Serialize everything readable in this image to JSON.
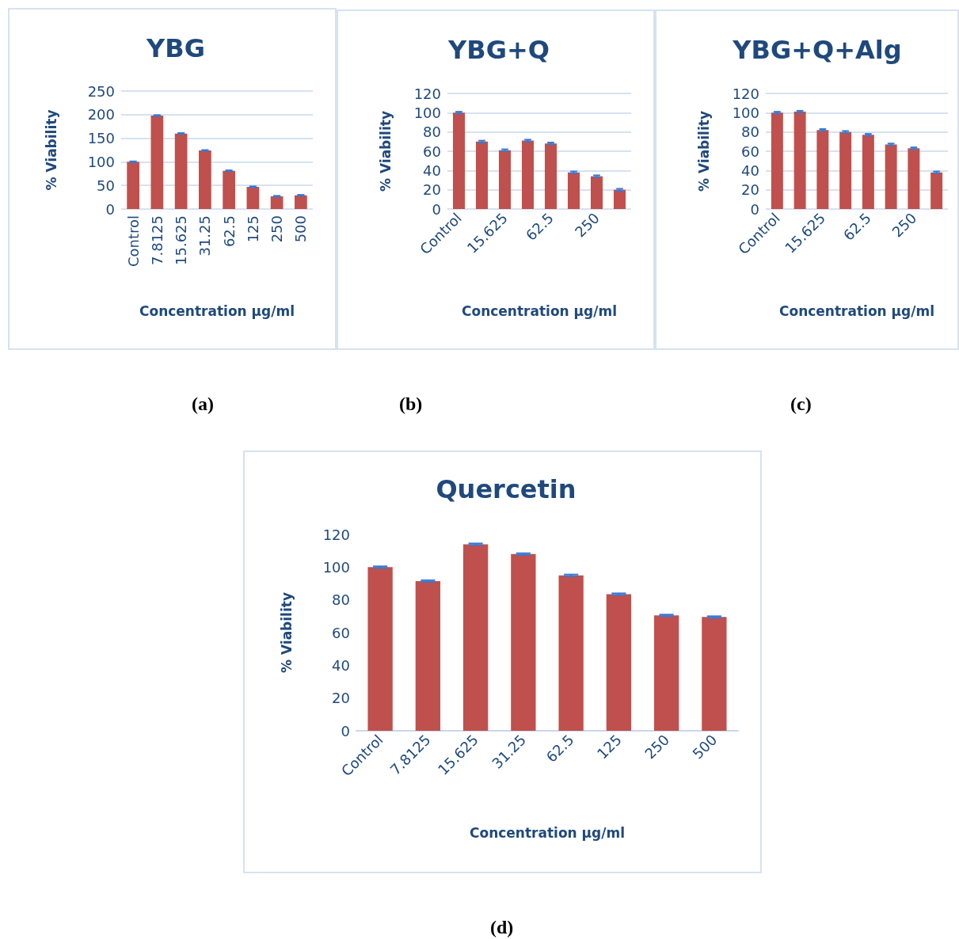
{
  "chart_data": [
    {
      "type": "bar",
      "title": "YBG",
      "xlabel": "Concentration µg/ml",
      "ylabel": "% Viability",
      "categories": [
        "Control",
        "7.8125",
        "15.625",
        "31.25",
        "62.5",
        "125",
        "250",
        "500"
      ],
      "series": [
        {
          "color": "#c0504d",
          "values": [
            100,
            198,
            160,
            124,
            81,
            47,
            27,
            29
          ],
          "errors": [
            1,
            1,
            1,
            1,
            1,
            1,
            1,
            1
          ]
        }
      ],
      "ylim": [
        0,
        250
      ],
      "yticks": [
        0,
        50,
        100,
        150,
        200,
        250
      ],
      "grid": "y",
      "annotations": [
        "(a)"
      ]
    },
    {
      "type": "bar",
      "title": "YBG+Q",
      "xlabel": "Concentration µg/ml",
      "ylabel": "% Viability",
      "categories": [
        "Control",
        null,
        "15.625",
        null,
        "62.5",
        null,
        "250",
        null
      ],
      "series": [
        {
          "color": "#c0504d",
          "values": [
            100,
            70,
            61,
            71,
            68,
            38,
            34,
            20
          ],
          "errors": [
            1,
            1,
            1,
            1,
            1,
            1,
            1,
            1
          ]
        }
      ],
      "ylim": [
        0,
        120
      ],
      "yticks": [
        0,
        20,
        40,
        60,
        80,
        100,
        120
      ],
      "grid": "y",
      "annotations": [
        "(b)"
      ]
    },
    {
      "type": "bar",
      "title": "YBG+Q+Alg",
      "xlabel": "Concentration µg/ml",
      "ylabel": "% Viability",
      "categories": [
        "Control",
        null,
        "15.625",
        null,
        "62.5",
        null,
        "250",
        null
      ],
      "series": [
        {
          "color": "#c0504d",
          "values": [
            100,
            101,
            82,
            80,
            77,
            67,
            63,
            38
          ],
          "errors": [
            1,
            1,
            1,
            1,
            1,
            1,
            1,
            1
          ]
        }
      ],
      "ylim": [
        0,
        120
      ],
      "yticks": [
        0,
        20,
        40,
        60,
        80,
        100,
        120
      ],
      "grid": "y",
      "annotations": [
        "(c)"
      ]
    },
    {
      "type": "bar",
      "title": "Quercetin",
      "xlabel": "Concentration µg/ml",
      "ylabel": "% Viability",
      "categories": [
        "Control",
        "7.8125",
        "15.625",
        "31.25",
        "62.5",
        "125",
        "250",
        "500"
      ],
      "series": [
        {
          "color": "#c0504d",
          "values": [
            100,
            91.5,
            114,
            108,
            95,
            83.5,
            70.5,
            69.5
          ],
          "errors": [
            0.5,
            0.5,
            0.5,
            0.5,
            0.5,
            0.5,
            0.5,
            0.5
          ]
        }
      ],
      "ylim": [
        0,
        120
      ],
      "yticks": [
        0,
        20,
        40,
        60,
        80,
        100,
        120
      ],
      "grid": false,
      "annotations": [
        "(d)"
      ]
    }
  ]
}
